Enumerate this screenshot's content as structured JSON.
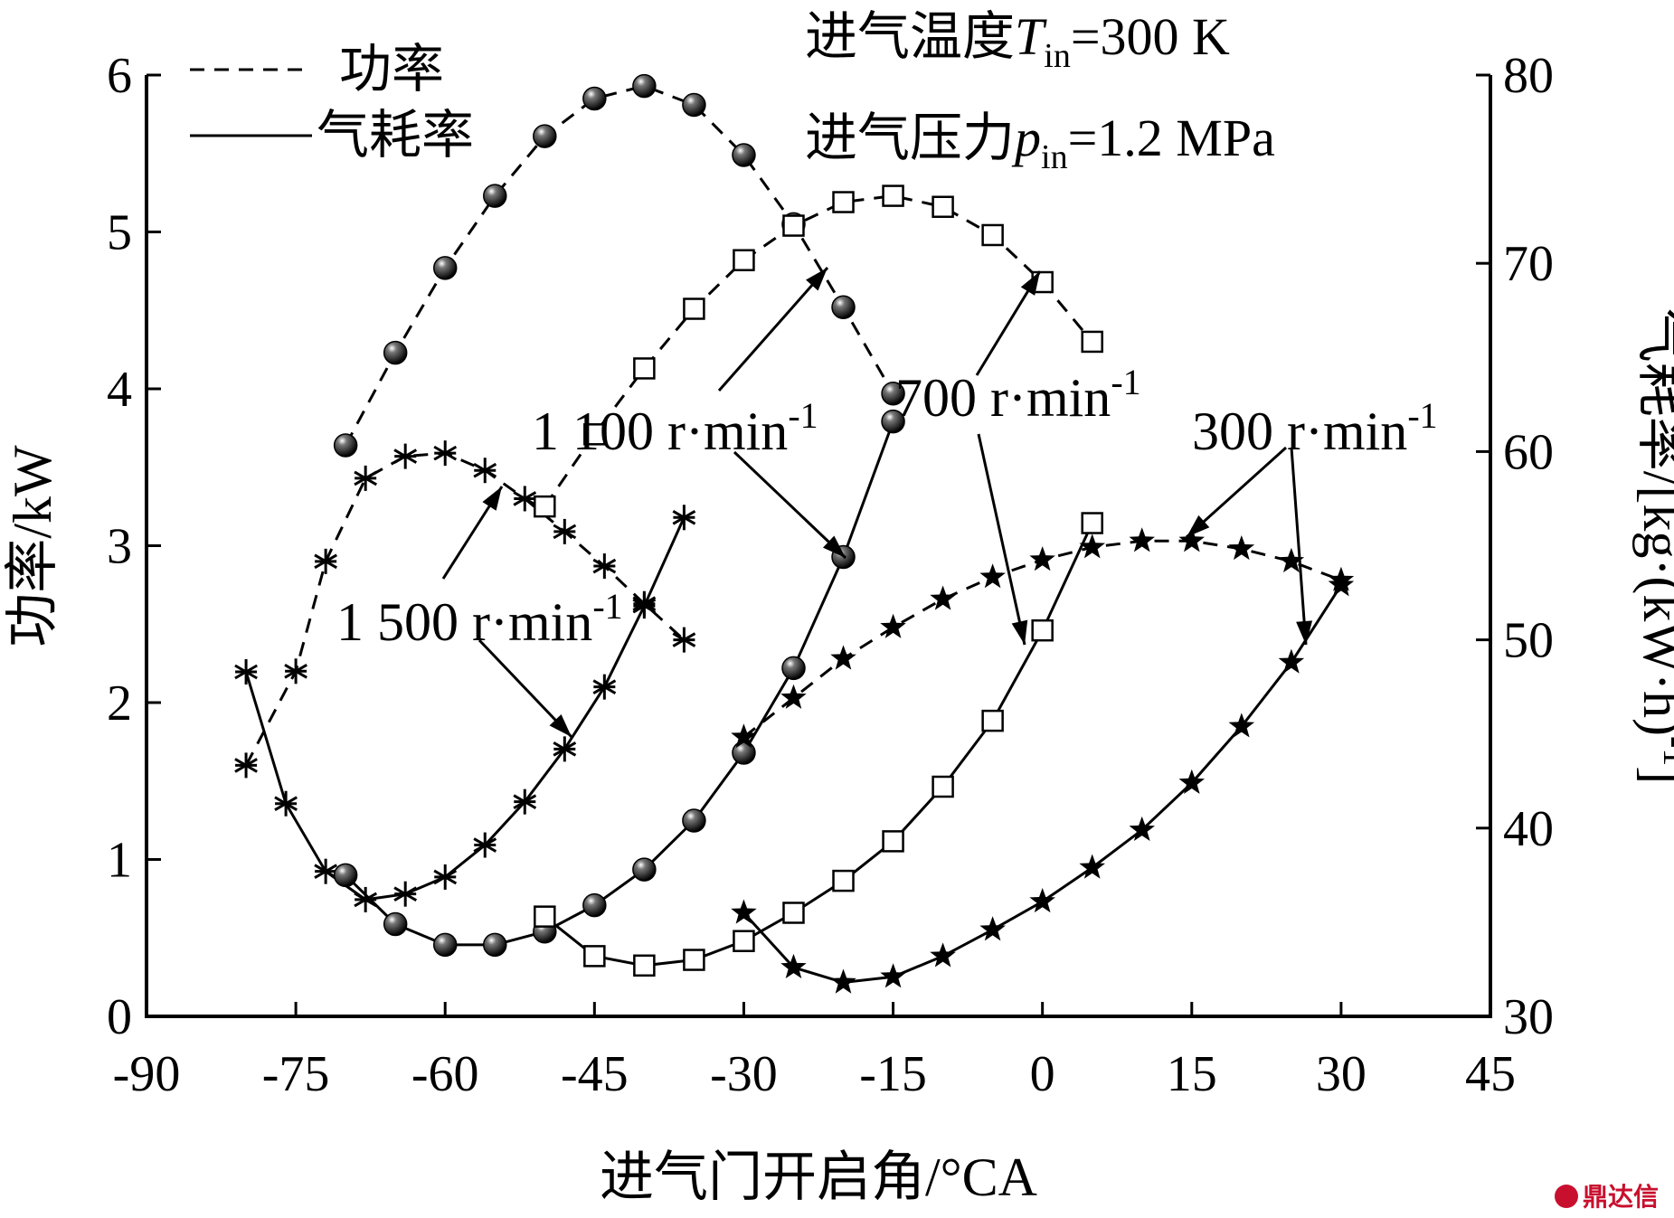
{
  "chart_data": {
    "type": "line",
    "conditions": {
      "line1": "进气温度T_in=300 K",
      "line2": "进气压力p_in=1.2 MPa"
    },
    "legend": {
      "power": "功率",
      "consumption": "气耗率",
      "placement": "top-left"
    },
    "xlabel": "进气门开启角/°CA",
    "ylabel_left": "功率/kW",
    "ylabel_right": "气耗率/[kg·(kW·h)-1]",
    "xlim": [
      -90,
      45
    ],
    "ylim_left": [
      0,
      6
    ],
    "ylim_right": [
      30,
      80
    ],
    "xticks": [
      -90,
      -75,
      -60,
      -45,
      -30,
      -15,
      0,
      15,
      30,
      45
    ],
    "yticks_left": [
      0,
      1,
      2,
      3,
      4,
      5,
      6
    ],
    "yticks_right": [
      30,
      40,
      50,
      60,
      70,
      80
    ],
    "speed_labels": [
      "1 500 r·min-1",
      "1 100 r·min-1",
      "700 r·min-1",
      "300 r·min-1"
    ],
    "series": [
      {
        "speed": "1 500 r·min-1",
        "quantity": "功率",
        "axis": "left",
        "marker": "asterisk",
        "x": [
          -80,
          -75,
          -72,
          -68,
          -64,
          -60,
          -56,
          -52,
          -48,
          -44,
          -40,
          -36
        ],
        "y": [
          1.6,
          2.2,
          2.9,
          3.43,
          3.57,
          3.59,
          3.48,
          3.3,
          3.09,
          2.87,
          2.63,
          2.4
        ]
      },
      {
        "speed": "1 500 r·min-1",
        "quantity": "气耗率",
        "axis": "right",
        "marker": "asterisk",
        "x": [
          -80,
          -76,
          -72,
          -68,
          -64,
          -60,
          -56,
          -52,
          -48,
          -44,
          -40,
          -36
        ],
        "y": [
          48.3,
          41.3,
          37.7,
          36.2,
          36.5,
          37.4,
          39.1,
          41.4,
          44.2,
          47.5,
          51.8,
          56.5
        ]
      },
      {
        "speed": "1 100 r·min-1",
        "quantity": "功率",
        "axis": "left",
        "marker": "ball",
        "x": [
          -70,
          -65,
          -60,
          -55,
          -50,
          -45,
          -40,
          -35,
          -30,
          -25,
          -20,
          -15
        ],
        "y": [
          3.64,
          4.23,
          4.77,
          5.23,
          5.61,
          5.85,
          5.93,
          5.81,
          5.49,
          5.05,
          4.52,
          3.97
        ]
      },
      {
        "speed": "1 100 r·min-1",
        "quantity": "气耗率",
        "axis": "right",
        "marker": "ball",
        "x": [
          -70,
          -65,
          -60,
          -55,
          -50,
          -45,
          -40,
          -35,
          -30,
          -25,
          -20,
          -15
        ],
        "y": [
          37.5,
          34.9,
          33.8,
          33.8,
          34.5,
          35.9,
          37.8,
          40.4,
          44.0,
          48.5,
          54.4,
          61.6
        ]
      },
      {
        "speed": "700 r·min-1",
        "quantity": "功率",
        "axis": "left",
        "marker": "open-square",
        "x": [
          -50,
          -45,
          -40,
          -35,
          -30,
          -25,
          -20,
          -15,
          -10,
          -5,
          0,
          5
        ],
        "y": [
          3.25,
          3.71,
          4.13,
          4.51,
          4.82,
          5.04,
          5.19,
          5.23,
          5.16,
          4.98,
          4.68,
          4.3
        ]
      },
      {
        "speed": "700 r·min-1",
        "quantity": "气耗率",
        "axis": "right",
        "marker": "open-square",
        "x": [
          -50,
          -45,
          -40,
          -35,
          -30,
          -25,
          -20,
          -15,
          -10,
          -5,
          0,
          5
        ],
        "y": [
          35.3,
          33.2,
          32.7,
          33.0,
          34.0,
          35.5,
          37.2,
          39.3,
          42.2,
          45.7,
          50.5,
          56.2
        ]
      },
      {
        "speed": "300 r·min-1",
        "quantity": "功率",
        "axis": "left",
        "marker": "filled-star",
        "x": [
          -30,
          -25,
          -20,
          -15,
          -10,
          -5,
          0,
          5,
          10,
          15,
          20,
          25,
          30
        ],
        "y": [
          1.78,
          2.03,
          2.28,
          2.48,
          2.66,
          2.8,
          2.91,
          2.99,
          3.03,
          3.03,
          2.98,
          2.9,
          2.78
        ]
      },
      {
        "speed": "300 r·min-1",
        "quantity": "气耗率",
        "axis": "right",
        "marker": "filled-star",
        "x": [
          -30,
          -25,
          -20,
          -15,
          -10,
          -5,
          0,
          5,
          10,
          15,
          20,
          25,
          30
        ],
        "y": [
          35.5,
          32.6,
          31.8,
          32.1,
          33.2,
          34.6,
          36.1,
          37.9,
          39.9,
          42.4,
          45.4,
          48.8,
          52.9
        ]
      }
    ]
  },
  "watermark": "鼎达信"
}
